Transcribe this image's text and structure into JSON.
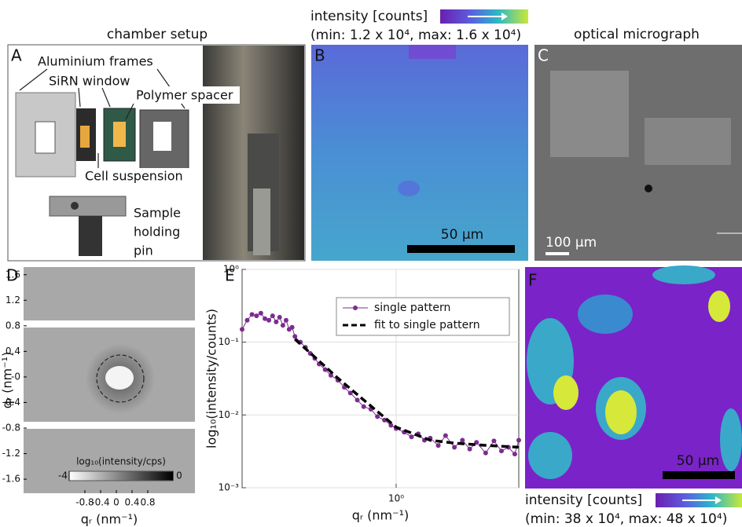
{
  "panels": {
    "a": {
      "label": "A",
      "title": "chamber setup",
      "annotations": [
        "Aluminium frames",
        "SiRN window",
        "Polymer spacer",
        "Cell suspension"
      ],
      "pin_lines": [
        "Sample",
        "holding",
        "pin"
      ]
    },
    "b": {
      "label": "B",
      "colorbar_title": "intensity [counts]",
      "range": "(min: 1.2 x 10⁴, max: 1.6 x 10⁴)",
      "scale_bar": "50 µm"
    },
    "c": {
      "label": "C",
      "title": "optical micrograph",
      "scale_bar": "100 µm"
    },
    "d": {
      "label": "D"
    },
    "e": {
      "label": "E"
    },
    "f": {
      "label": "F",
      "colorbar_title": "intensity [counts]",
      "range": "(min: 38 x 10⁴, max: 48 x 10⁴)",
      "scale_bar": "50 µm"
    }
  },
  "chart_data": [
    {
      "type": "image",
      "xlabel": "qᵣ (nm⁻¹)",
      "ylabel": "qᵣ (nm⁻¹)",
      "xlim": [
        -2.36,
        2.0
      ],
      "ylim": [
        -1.82,
        1.72
      ],
      "xticks": [
        -0.8,
        -0.4,
        0,
        0.4,
        0.8
      ],
      "yticks": [
        1.6,
        1.2,
        0.8,
        0.4,
        {
          "value": 0,
          "label": "-0"
        },
        -0.4,
        -0.8,
        -1.2,
        -1.6
      ],
      "colorbar": {
        "label": "log₁₀(intensity/cps)",
        "lim": [
          -4,
          0
        ],
        "ticks": [
          -4,
          0
        ]
      }
    },
    {
      "type": "scatter",
      "xlabel": "qᵣ (nm⁻¹)",
      "ylabel": "log₁₀(intensity/counts)",
      "log_x": true,
      "log_y": true,
      "grid": true,
      "legend": "upper right",
      "xlim": [
        0.16,
        4.3
      ],
      "ylim": [
        0.001,
        1
      ],
      "xticks": [
        {
          "value": 1,
          "label": "10⁰"
        }
      ],
      "yticks": [
        {
          "value": 0.001,
          "label": "10⁻³"
        },
        {
          "value": 0.01,
          "label": "10⁻²"
        },
        {
          "value": 0.1,
          "label": "10⁻¹"
        },
        {
          "value": 1,
          "label": "10⁰"
        }
      ],
      "series": [
        {
          "name": "single pattern",
          "color": "#7b2d8e",
          "style": "markers",
          "x": [
            0.16,
            0.17,
            0.18,
            0.19,
            0.2,
            0.21,
            0.22,
            0.23,
            0.24,
            0.25,
            0.26,
            0.27,
            0.28,
            0.29,
            0.3,
            0.32,
            0.34,
            0.36,
            0.38,
            0.4,
            0.43,
            0.46,
            0.5,
            0.54,
            0.58,
            0.63,
            0.68,
            0.74,
            0.8,
            0.87,
            0.94,
            1.0,
            1.1,
            1.2,
            1.3,
            1.4,
            1.5,
            1.65,
            1.8,
            2.0,
            2.2,
            2.4,
            2.6,
            2.9,
            3.2,
            3.5,
            3.8,
            4.1,
            4.3
          ],
          "values": [
            0.15,
            0.2,
            0.24,
            0.23,
            0.25,
            0.21,
            0.2,
            0.23,
            0.19,
            0.22,
            0.17,
            0.2,
            0.15,
            0.16,
            0.12,
            0.1,
            0.085,
            0.07,
            0.06,
            0.05,
            0.042,
            0.035,
            0.03,
            0.024,
            0.02,
            0.016,
            0.013,
            0.012,
            0.0095,
            0.0085,
            0.0072,
            0.0065,
            0.0058,
            0.005,
            0.0055,
            0.0045,
            0.0048,
            0.0038,
            0.0052,
            0.0036,
            0.0045,
            0.0034,
            0.0042,
            0.003,
            0.0044,
            0.0032,
            0.0036,
            0.0029,
            0.0045
          ]
        },
        {
          "name": "fit to single pattern",
          "color": "#000000",
          "style": "dashed",
          "x": [
            0.3,
            0.4,
            0.5,
            0.7,
            1.0,
            1.5,
            2,
            3,
            4.3
          ],
          "values": [
            0.11,
            0.055,
            0.032,
            0.015,
            0.0068,
            0.0045,
            0.0041,
            0.0038,
            0.0036
          ]
        }
      ]
    }
  ]
}
